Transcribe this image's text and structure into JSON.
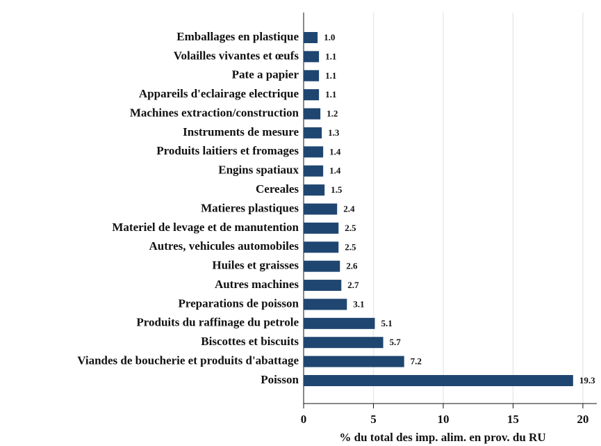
{
  "chart_data": {
    "type": "barh",
    "xlabel": "% du total des imp. alim. en prov. du RU",
    "categories": [
      "Emballages en plastique",
      "Volailles vivantes et œufs",
      "Pate a papier",
      "Appareils d'eclairage electrique",
      "Machines extraction/construction",
      "Instruments de mesure",
      "Produits laitiers et fromages",
      "Engins spatiaux",
      "Cereales",
      "Matieres plastiques",
      "Materiel de levage et de manutention",
      "Autres, vehicules automobiles",
      "Huiles et graisses",
      "Autres machines",
      "Preparations de poisson",
      "Produits du raffinage du petrole",
      "Biscottes et biscuits",
      "Viandes de boucherie et produits d'abattage",
      "Poisson"
    ],
    "values": [
      1.0,
      1.1,
      1.1,
      1.1,
      1.2,
      1.3,
      1.4,
      1.4,
      1.5,
      2.4,
      2.5,
      2.5,
      2.6,
      2.7,
      3.1,
      5.1,
      5.7,
      7.2,
      19.3
    ],
    "value_labels": [
      "1.0",
      "1.1",
      "1.1",
      "1.1",
      "1.2",
      "1.3",
      "1.4",
      "1.4",
      "1.5",
      "2.4",
      "2.5",
      "2.5",
      "2.6",
      "2.7",
      "3.1",
      "5.1",
      "5.7",
      "7.2",
      "19.3"
    ],
    "color": "#1f4670",
    "xlim": [
      0,
      21
    ],
    "xticks": [
      0,
      5,
      10,
      15,
      20
    ],
    "grid": true
  }
}
